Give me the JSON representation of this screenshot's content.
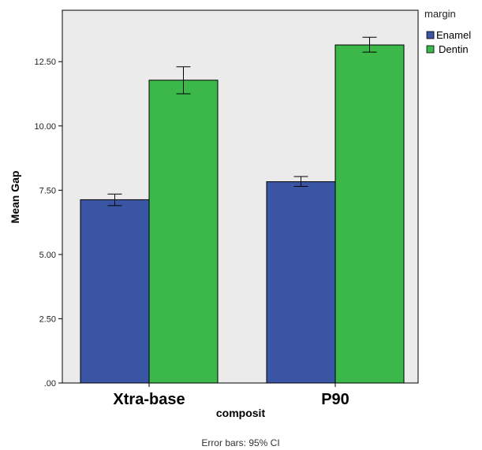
{
  "colors": {
    "Enamel": "#3a55a4",
    "Dentin": "#3cb84a",
    "plot_bg": "#ebebeb"
  },
  "chart_data": {
    "type": "bar",
    "title": "",
    "xlabel": "composit",
    "ylabel": "Mean Gap",
    "categories": [
      "Xtra-base",
      "P90"
    ],
    "series": [
      {
        "name": "Enamel",
        "values": [
          7.13,
          7.83
        ],
        "ci": [
          [
            6.9,
            7.35
          ],
          [
            7.65,
            8.03
          ]
        ]
      },
      {
        "name": "Dentin",
        "values": [
          11.78,
          13.15
        ],
        "ci": [
          [
            11.25,
            12.3
          ],
          [
            12.87,
            13.45
          ]
        ]
      }
    ],
    "ylim": [
      0,
      14.5
    ],
    "yticks": [
      0,
      2.5,
      5,
      7.5,
      10,
      12.5
    ],
    "ytick_labels": [
      ".00",
      "2.50",
      "5.00",
      "7.50",
      "10.00",
      "12.50"
    ],
    "legend_title": "margin",
    "legend_position": "top-right",
    "grid": false,
    "footnote": "Error bars: 95% CI"
  }
}
